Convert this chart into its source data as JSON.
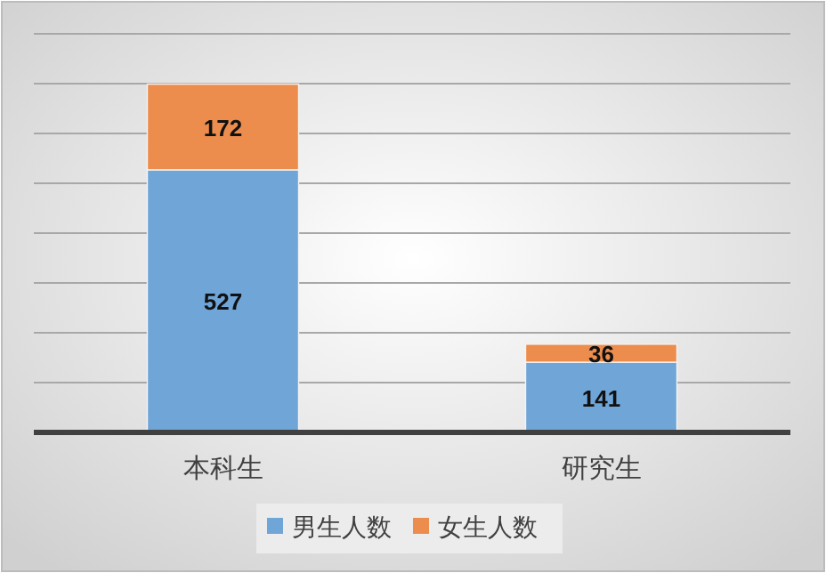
{
  "chart_data": {
    "type": "bar",
    "stacked": true,
    "categories": [
      "本科生",
      "研究生"
    ],
    "series": [
      {
        "name": "男生人数",
        "color": "#6fa5d7",
        "values": [
          527,
          141
        ]
      },
      {
        "name": "女生人数",
        "color": "#ed8d4d",
        "values": [
          172,
          36
        ]
      }
    ],
    "ylim": [
      0,
      800
    ],
    "yticks": [
      {
        "value": 0,
        "label": null
      },
      {
        "value": 100,
        "label": null
      },
      {
        "value": 200,
        "label": null
      },
      {
        "value": 300,
        "label": null
      },
      {
        "value": 400,
        "label": null
      },
      {
        "value": 500,
        "label": null
      },
      {
        "value": 600,
        "label": null
      },
      {
        "value": 700,
        "label": null
      },
      {
        "value": 800,
        "label": null
      }
    ],
    "grid": "y",
    "legend": "bottom",
    "data_labels": true
  }
}
